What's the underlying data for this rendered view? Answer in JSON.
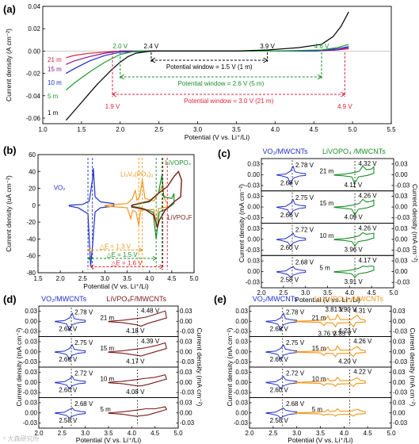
{
  "chart_data": [
    {
      "panel": "(a)",
      "type": "line",
      "xlabel": "Potential (V vs. Li⁺/Li)",
      "ylabel": "Current density (A cm⁻²)",
      "xlim": [
        1.0,
        5.5
      ],
      "ylim": [
        -0.065,
        0.04
      ],
      "xticks": [
        "1.0",
        "1.5",
        "2.0",
        "2.5",
        "3.0",
        "3.5",
        "4.0",
        "4.5",
        "5.0",
        "5.5"
      ],
      "yticks": [
        "0.04",
        "0.02",
        "0.00",
        "-0.02",
        "-0.04",
        "-0.06"
      ],
      "series": [
        {
          "name": "21 m",
          "color": "#e0233b",
          "x": [
            1.3,
            1.4,
            1.6,
            1.8,
            2.0,
            2.5,
            3.0,
            4.0,
            4.5,
            4.8,
            4.95
          ],
          "y": [
            -0.006,
            -0.004,
            -0.002,
            -0.001,
            0.0,
            0.0,
            0.0,
            0.0,
            0.0,
            0.001,
            0.002
          ]
        },
        {
          "name": "15 m",
          "color": "#8a1c8c",
          "x": [
            1.3,
            1.4,
            1.6,
            1.8,
            2.0,
            2.5,
            3.0,
            4.0,
            4.5,
            4.8,
            4.95
          ],
          "y": [
            -0.012,
            -0.009,
            -0.005,
            -0.002,
            0.0,
            0.0,
            0.0,
            0.0,
            0.0,
            0.001,
            0.003
          ]
        },
        {
          "name": "10 m",
          "color": "#1a2bd1",
          "x": [
            1.3,
            1.4,
            1.6,
            1.8,
            2.0,
            2.5,
            3.0,
            4.0,
            4.5,
            4.8,
            4.95
          ],
          "y": [
            -0.02,
            -0.016,
            -0.009,
            -0.004,
            -0.001,
            0.0,
            0.0,
            0.0,
            0.0,
            0.002,
            0.004
          ]
        },
        {
          "name": "5 m",
          "color": "#1c9c2c",
          "x": [
            1.3,
            1.4,
            1.6,
            1.8,
            2.0,
            2.2,
            2.5,
            3.0,
            4.0,
            4.6,
            4.8,
            4.95
          ],
          "y": [
            -0.035,
            -0.029,
            -0.019,
            -0.01,
            -0.003,
            0.0,
            0.0,
            0.0,
            0.0,
            0.001,
            0.003,
            0.006
          ]
        },
        {
          "name": "1 m",
          "color": "#000000",
          "x": [
            1.3,
            1.4,
            1.5,
            1.6,
            1.7,
            1.8,
            1.9,
            2.0,
            2.1,
            2.2,
            2.4,
            2.6,
            3.0,
            3.5,
            3.9,
            4.1,
            4.3,
            4.6,
            4.75,
            4.85,
            4.95
          ],
          "y": [
            -0.062,
            -0.054,
            -0.046,
            -0.038,
            -0.03,
            -0.023,
            -0.016,
            -0.01,
            -0.005,
            -0.002,
            0.0,
            0.0,
            0.0,
            0.0,
            0.001,
            0.002,
            0.003,
            0.006,
            0.013,
            0.022,
            0.035
          ]
        }
      ],
      "annotations": {
        "v_1m_low": "2.4 V",
        "v_1m_high": "3.9 V",
        "v_5m_low": "2.0 V",
        "v_5m_high": "4.6 V",
        "v_21m_low": "1.9 V",
        "v_21m_high": "4.9 V",
        "window_1m": "Potential window = 1.5 V (1 m)",
        "window_5m": "Potential window = 2.6 V (5 m)",
        "window_21m": "Potential window = 3.0 V (21 m)"
      }
    },
    {
      "panel": "(b)",
      "type": "line",
      "xlabel": "Potential (V vs. Li⁺/Li)",
      "ylabel": "Current density (uA cm⁻²)",
      "xlim": [
        1.5,
        5.0
      ],
      "ylim": [
        -80,
        60
      ],
      "xticks": [
        "1.5",
        "2.0",
        "2.5",
        "3.0",
        "3.5",
        "4.0",
        "4.5",
        "5.0"
      ],
      "yticks": [
        "60",
        "40",
        "20",
        "0",
        "-20",
        "-40",
        "-60",
        "-80"
      ],
      "labels": {
        "vo2": "VO₂",
        "lvp": "Li₃V₂(PO₄)₃",
        "livopo4": "LiVOPO₄",
        "livpo4f": "LiVPO₄F"
      },
      "delta_e": [
        "△E = 1.3 V",
        "△E = 1.5 V",
        "△E = 1.6 V"
      ]
    },
    {
      "panel": "(c)",
      "type": "line",
      "xlabel": "Potential (V vs. Li⁺/Li)",
      "ylabel_left": "Current density (mA cm⁻²)",
      "ylabel_right": "Current density (mA cm⁻²)",
      "xlim": [
        2.0,
        5.0
      ],
      "xticks": [
        "2.0",
        "2.5",
        "3.0",
        "3.5",
        "4.0",
        "4.5",
        "5.0"
      ],
      "yticks": [
        "0.03",
        "0.00",
        "-0.03"
      ],
      "header_left": "VO₂/MWCNTs",
      "header_right": "LiVOPO₄ /MWCNTs",
      "rows": [
        {
          "label": "21 m",
          "a": "2.78 V",
          "b": "2.68 V",
          "c": "4.32 V",
          "d": "4.11 V"
        },
        {
          "label": "15 m",
          "a": "2.75 V",
          "b": "2.66 V",
          "c": "4.26 V",
          "d": "4.09 V"
        },
        {
          "label": "10 m",
          "a": "2.72 V",
          "b": "2.60 V",
          "c": "4.26 V",
          "d": "3.96 V"
        },
        {
          "label": "5 m",
          "a": "2.68 V",
          "b": "2.58 V",
          "c": "4.17 V",
          "d": "3.91 V"
        }
      ]
    },
    {
      "panel": "(d)",
      "type": "line",
      "xlabel": "Potential (V vs. Li⁺/Li)",
      "ylabel_left": "Current density (mA cm⁻²)",
      "ylabel_right": "Current density (mA cm⁻²)",
      "xlim": [
        2.0,
        5.0
      ],
      "xticks": [
        "2.0",
        "2.5",
        "3.0",
        "3.5",
        "4.0",
        "4.5",
        "5.0"
      ],
      "yticks": [
        "0.03",
        "0.00",
        "-0.03"
      ],
      "header_left": "VO₂/MWCNTs",
      "header_right": "LiVPO₄F/MWCNTs",
      "rows": [
        {
          "label": "21 m",
          "a": "2.78 V",
          "b": "2.68 V",
          "c": "4.48 V",
          "d": "4.18 V"
        },
        {
          "label": "15 m",
          "a": "2.75 V",
          "b": "2.66 V",
          "c": "4.39 V",
          "d": "4.17 V"
        },
        {
          "label": "10 m",
          "a": "2.72 V",
          "b": "2.60 V",
          "c": "",
          "d": "4.08 V"
        },
        {
          "label": "5 m",
          "a": "2.68 V",
          "b": "2.58 V",
          "c": "",
          "d": ""
        }
      ]
    },
    {
      "panel": "(e)",
      "type": "line",
      "xlabel": "Potential (V vs. Li⁺/Li)",
      "ylabel_left": "Current density (mA cm⁻²)",
      "ylabel_right": "Current density (mA cm⁻²)",
      "xlim": [
        2.0,
        5.0
      ],
      "xticks": [
        "2.0",
        "2.5",
        "3.0",
        "3.5",
        "4.0",
        "4.5",
        "5.0"
      ],
      "yticks": [
        "0.03",
        "0.00",
        "-0.03"
      ],
      "header_left": "VO₂/MWCNTs",
      "header_right": "Li₃V₂(PO₄)₃/MWCNTs",
      "rows": [
        {
          "label": "21 m",
          "a": "2.78 V",
          "b": "2.68 V",
          "c": "4.31 V",
          "d": "4.23 V",
          "e": "3.81 V",
          "f": "3.90 V",
          "g": "3.76 V",
          "h": "3.85 V"
        },
        {
          "label": "15 m",
          "a": "2.75 V",
          "b": "2.66 V",
          "c": "4.26 V",
          "d": "4.20 V"
        },
        {
          "label": "10 m",
          "a": "2.72 V",
          "b": "2.60 V",
          "c": "4.22 V",
          "d": ""
        },
        {
          "label": "5 m",
          "a": "2.68 V",
          "b": "2.58 V",
          "c": "",
          "d": ""
        }
      ]
    }
  ],
  "watermark": "⁵ 大森研究所"
}
